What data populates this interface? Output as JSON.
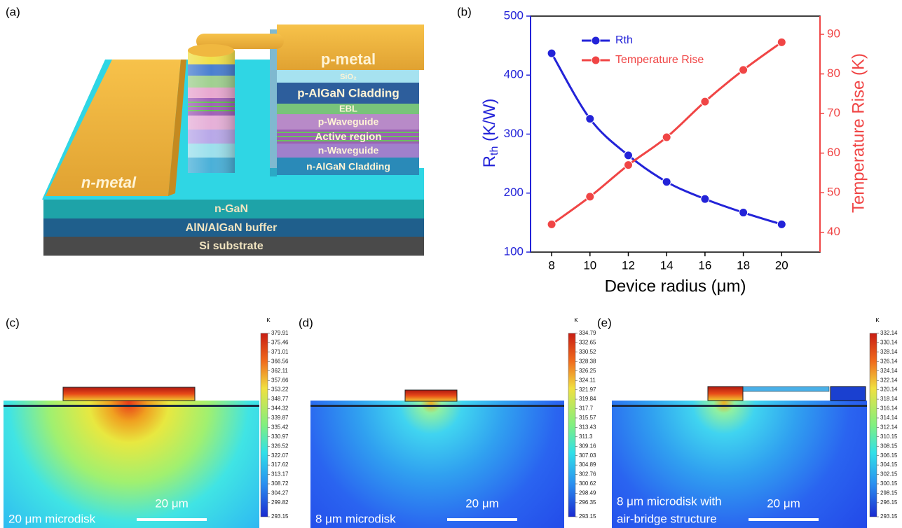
{
  "panel_a": {
    "label": "(a)",
    "layers": {
      "p_metal": "p-metal",
      "sio2": "SiO₂",
      "p_cladding": "p-AlGaN Cladding",
      "ebl": "EBL",
      "p_waveguide": "p-Waveguide",
      "active": "Active region",
      "n_waveguide": "n-Waveguide",
      "n_cladding": "n-AlGaN Cladding",
      "n_metal": "n-metal",
      "n_gan": "n-GaN",
      "buffer": "AlN/AlGaN buffer",
      "substrate": "Si substrate"
    }
  },
  "chart_data": {
    "type": "line",
    "label": "(b)",
    "x_label": "Device radius (μm)",
    "y_label": [
      "R",
      "th",
      " (K/W)"
    ],
    "y2_label": "Temperature Rise (K)",
    "x": [
      8,
      10,
      12,
      14,
      16,
      18,
      20
    ],
    "series": [
      {
        "name": "Rth",
        "color": "#2323d8",
        "values": [
          437,
          326,
          264,
          219,
          190,
          167,
          147
        ]
      },
      {
        "name": "Temperature Rise",
        "color": "#f04545",
        "axis": "y2",
        "values": [
          42,
          49,
          57,
          64,
          73,
          81,
          88
        ]
      }
    ],
    "xlim": [
      6.9,
      22
    ],
    "xticks": [
      8,
      10,
      12,
      14,
      16,
      18,
      20
    ],
    "ylim": [
      100,
      500
    ],
    "yticks": [
      100,
      200,
      300,
      400,
      500
    ],
    "y2lim": [
      35,
      94.6
    ],
    "y2ticks": [
      40,
      50,
      60,
      70,
      80,
      90
    ],
    "legend": "upper-left"
  },
  "maps": [
    {
      "label": "(c)",
      "unit": "K",
      "caption": [
        "20 μm microdisk"
      ],
      "scale_bar": "20 μm",
      "ticks": [
        379.91,
        375.46,
        371.01,
        366.56,
        362.11,
        357.66,
        353.22,
        348.77,
        344.32,
        339.87,
        335.42,
        330.97,
        326.52,
        322.07,
        317.62,
        313.17,
        308.72,
        304.27,
        299.82,
        293.15
      ]
    },
    {
      "label": "(d)",
      "unit": "K",
      "caption": [
        "8 μm microdisk"
      ],
      "scale_bar": "20 μm",
      "ticks": [
        334.79,
        332.65,
        330.52,
        328.38,
        326.25,
        324.11,
        321.97,
        319.84,
        317.7,
        315.57,
        313.43,
        311.3,
        309.16,
        307.03,
        304.89,
        302.76,
        300.62,
        298.49,
        296.35,
        293.15
      ]
    },
    {
      "label": "(e)",
      "unit": "K",
      "caption": [
        "8 μm microdisk with",
        "air-bridge structure"
      ],
      "scale_bar": "20 μm",
      "ticks": [
        332.14,
        330.14,
        328.14,
        326.14,
        324.14,
        322.14,
        320.14,
        318.14,
        316.14,
        314.14,
        312.14,
        310.15,
        308.15,
        306.15,
        304.15,
        302.15,
        300.15,
        298.15,
        296.15,
        293.15
      ]
    }
  ]
}
